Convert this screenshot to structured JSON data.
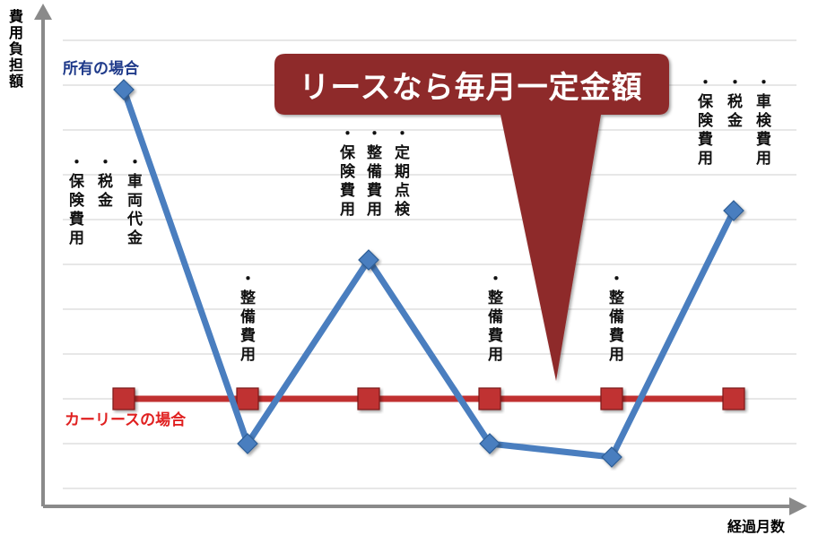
{
  "chart_data": {
    "type": "line",
    "title": "",
    "ylabel": "費用負担額",
    "xlabel": "経過月数",
    "grid": true,
    "ylim": [
      0,
      10
    ],
    "x": [
      1,
      2,
      3,
      4,
      5,
      6
    ],
    "series": [
      {
        "name": "所有の場合",
        "color": "#4a7ebf",
        "values": [
          8.9,
          1.0,
          5.1,
          1.0,
          0.7,
          6.2
        ],
        "annotations": [
          [
            "・保険費用",
            "・税金",
            "・車両代金"
          ],
          [
            "・整備費用"
          ],
          [
            "・保険費用",
            "・整備費用",
            "・定期点検"
          ],
          [
            "・整備費用"
          ],
          [
            "・整備費用"
          ],
          [
            "・保険費用",
            "・税金",
            "・車検費用"
          ]
        ]
      },
      {
        "name": "カーリースの場合",
        "color": "#c03030",
        "values": [
          2.0,
          2.0,
          2.0,
          2.0,
          2.0,
          2.0
        ]
      }
    ],
    "callout": "リースなら毎月一定金額"
  },
  "colors": {
    "owned": "#4a7ebf",
    "owned_label": "#1f3a8a",
    "lease": "#c03030",
    "lease_label": "#e02020",
    "callout_bg": "#8e2b2b",
    "grid": "#cfcfcf",
    "axis": "#8a8a8a"
  }
}
